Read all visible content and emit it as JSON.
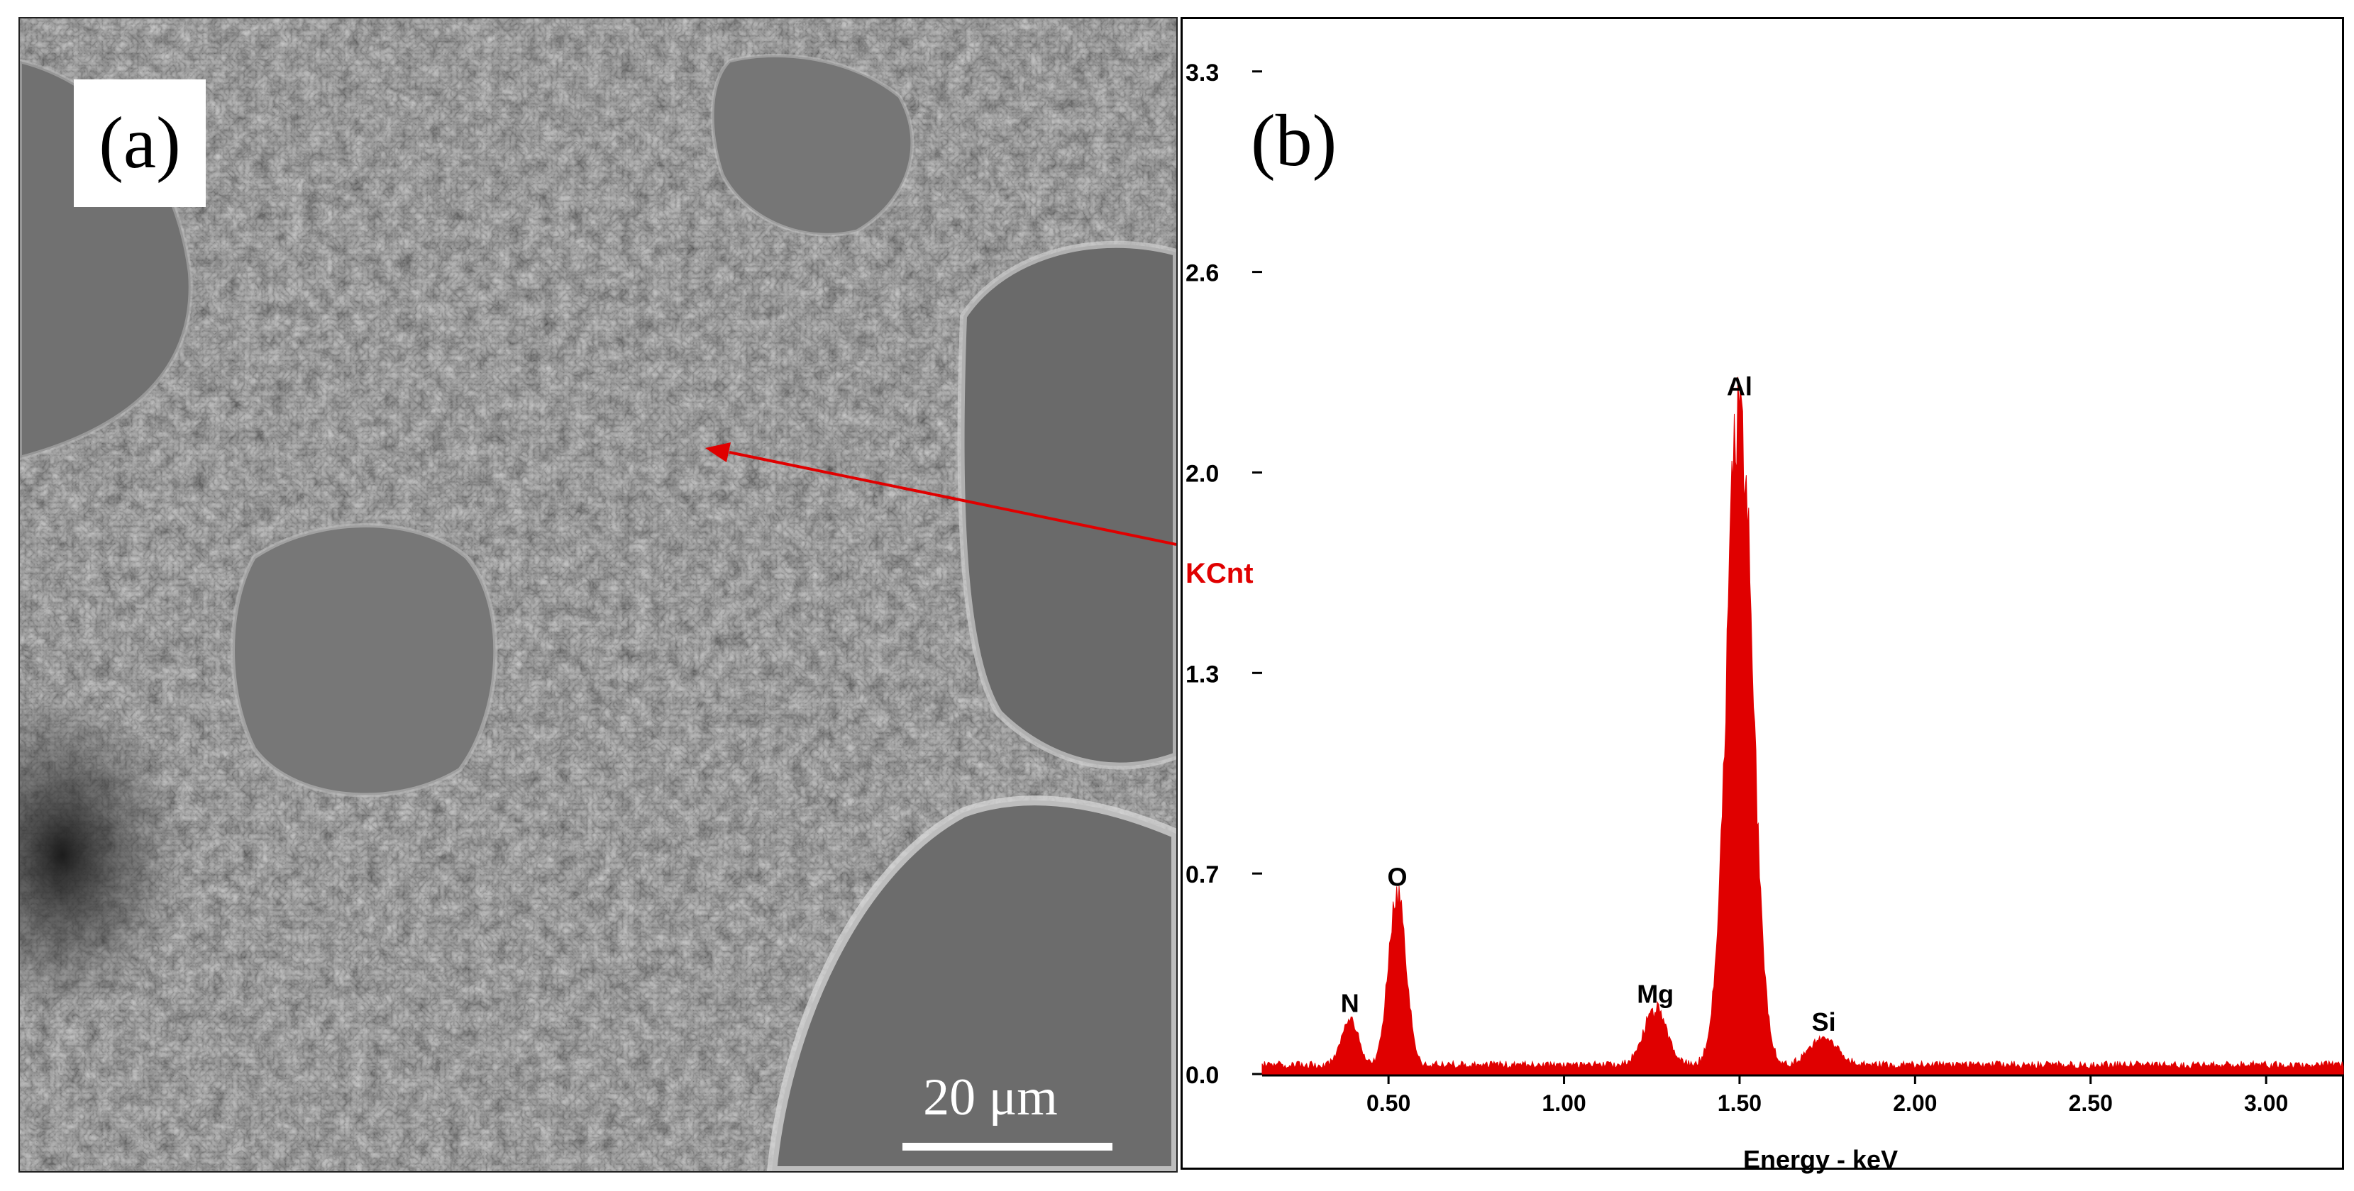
{
  "panel_a": {
    "label": "(a)",
    "scale_bar_text": "20 μm",
    "colors": {
      "background": "#6e6e6e",
      "arrow": "#e00000"
    }
  },
  "panel_b": {
    "label": "(b)"
  },
  "chart_data": {
    "type": "area",
    "title": "",
    "xlabel": "Energy - keV",
    "ylabel": "KCnt",
    "xlim": [
      0.14,
      3.22
    ],
    "ylim": [
      0,
      3.3
    ],
    "x_ticks": [
      0.5,
      1.0,
      1.5,
      2.0,
      2.5,
      3.0
    ],
    "x_tick_labels": [
      "0.50",
      "1.00",
      "1.50",
      "2.00",
      "2.50",
      "3.00"
    ],
    "y_ticks": [
      0,
      0.65,
      1.3,
      1.95,
      2.6,
      3.25
    ],
    "y_tick_labels": [
      "0.0",
      "0.7",
      "1.3",
      "2.0",
      "2.6",
      "3.3"
    ],
    "fill_color": "#e00000",
    "baseline": 0.03,
    "peaks": [
      {
        "element": "N",
        "energy": 0.39,
        "height": 0.15
      },
      {
        "element": "O",
        "energy": 0.525,
        "height": 0.56
      },
      {
        "element": "Mg",
        "energy": 1.26,
        "height": 0.18
      },
      {
        "element": "Al",
        "energy": 1.5,
        "height": 2.15
      },
      {
        "element": "Si",
        "energy": 1.74,
        "height": 0.09
      }
    ]
  }
}
